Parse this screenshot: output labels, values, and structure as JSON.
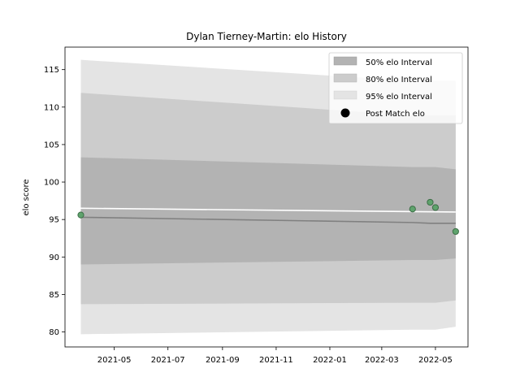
{
  "chart_data": {
    "type": "area",
    "title": "Dylan Tierney-Martin: elo History",
    "xlabel": "",
    "ylabel": "elo score",
    "x_range": [
      "2021-03-06",
      "2022-06-07"
    ],
    "ylim": [
      78,
      118
    ],
    "x_ticks": [
      "2021-05-01",
      "2021-07-01",
      "2021-09-01",
      "2021-11-01",
      "2022-01-01",
      "2022-03-01",
      "2022-05-01"
    ],
    "x_tick_labels": [
      "2021-05",
      "2021-07",
      "2021-09",
      "2021-11",
      "2022-01",
      "2022-03",
      "2022-05"
    ],
    "y_ticks": [
      80,
      85,
      90,
      95,
      100,
      105,
      110,
      115
    ],
    "y_tick_labels": [
      "80",
      "85",
      "90",
      "95",
      "100",
      "105",
      "110",
      "115"
    ],
    "grid": false,
    "legend_position": "top-right",
    "legend": [
      "50% elo Interval",
      "80% elo Interval",
      "95% elo Interval",
      "Post Match elo"
    ],
    "colors": {
      "band_50": "#b3b3b3",
      "band_80": "#cccccc",
      "band_95": "#e4e4e4",
      "mean_line": "#808080",
      "white_line": "#ffffff",
      "points": "#5fa36d",
      "point_edge": "#3c6e46"
    },
    "x": [
      "2021-03-24",
      "2022-04-05",
      "2022-04-25",
      "2022-05-01",
      "2022-05-24"
    ],
    "mean": [
      95.3,
      94.6,
      94.5,
      94.5,
      94.5
    ],
    "band_50": {
      "lower": [
        89.0,
        89.6,
        89.6,
        89.6,
        89.8
      ],
      "upper": [
        103.3,
        102.0,
        102.0,
        102.0,
        101.7
      ]
    },
    "band_80": {
      "lower": [
        83.7,
        83.9,
        83.9,
        83.9,
        84.2
      ],
      "upper": [
        111.9,
        108.9,
        108.9,
        108.9,
        108.9
      ]
    },
    "band_95": {
      "lower": [
        79.7,
        80.3,
        80.3,
        80.3,
        80.7
      ],
      "upper": [
        116.3,
        113.5,
        113.5,
        113.5,
        113.5
      ]
    },
    "white_line": {
      "x": [
        "2021-03-24",
        "2022-05-24"
      ],
      "y": [
        96.5,
        96.0
      ]
    },
    "points": {
      "name": "Post Match elo",
      "x": [
        "2021-03-24",
        "2022-04-05",
        "2022-04-25",
        "2022-05-01",
        "2022-05-24"
      ],
      "y": [
        95.6,
        96.4,
        97.3,
        96.6,
        93.4
      ]
    }
  }
}
